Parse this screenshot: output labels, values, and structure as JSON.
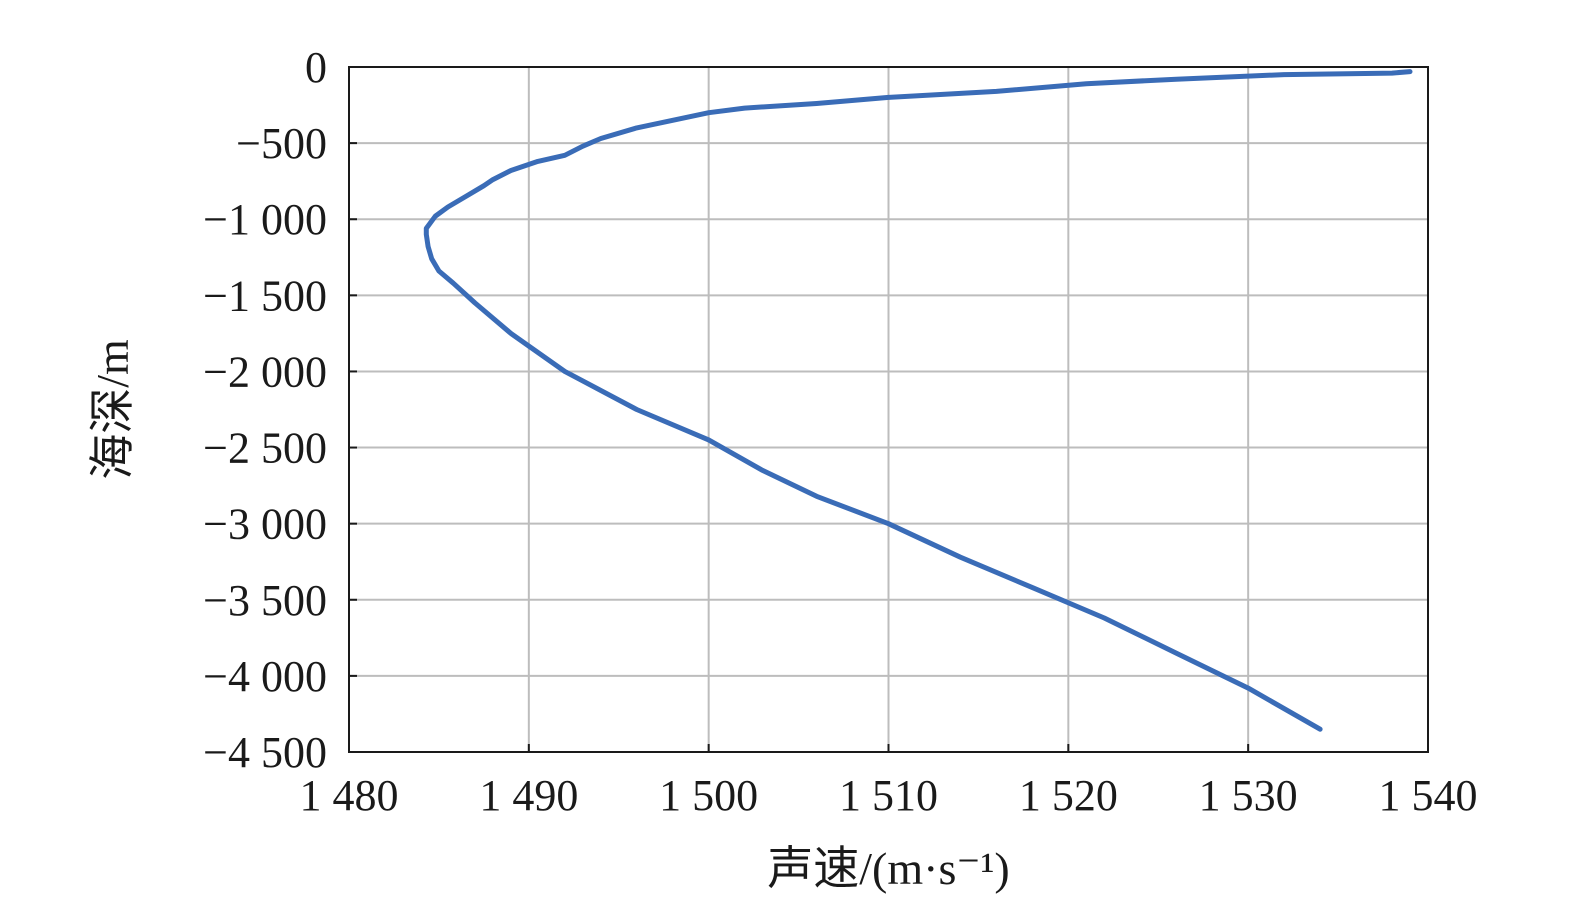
{
  "chart_data": {
    "type": "line",
    "title": "",
    "xlabel": "声速/(m·s⁻¹)",
    "ylabel": "海深/m",
    "xlim": [
      1480,
      1540
    ],
    "ylim": [
      -4500,
      0
    ],
    "xticks": [
      1480,
      1490,
      1500,
      1510,
      1520,
      1530,
      1540
    ],
    "xtick_labels": [
      "1 480",
      "1 490",
      "1 500",
      "1 510",
      "1 520",
      "1 530",
      "1 540"
    ],
    "yticks": [
      0,
      -500,
      -1000,
      -1500,
      -2000,
      -2500,
      -3000,
      -3500,
      -4000,
      -4500
    ],
    "ytick_labels": [
      "0",
      "−500",
      "−1 000",
      "−1 500",
      "−2 000",
      "−2 500",
      "−3 000",
      "−3 500",
      "−4 000",
      "−4 500"
    ],
    "grid": true,
    "legend": "none",
    "line_color": "#3a6cb7",
    "series": [
      {
        "x": [
          1539,
          1538,
          1532,
          1526,
          1521,
          1516,
          1510,
          1506,
          1502,
          1500,
          1498,
          1496,
          1494,
          1493,
          1492,
          1490.5,
          1489,
          1488,
          1487.5,
          1486.5,
          1485.5,
          1484.8,
          1484.3,
          1484.3,
          1484.4,
          1484.6,
          1485,
          1485.8,
          1487,
          1489,
          1492,
          1496,
          1500,
          1503,
          1506,
          1510,
          1514,
          1518,
          1522,
          1526,
          1530,
          1534
        ],
        "y": [
          -30,
          -40,
          -50,
          -80,
          -110,
          -160,
          -200,
          -240,
          -270,
          -300,
          -350,
          -400,
          -470,
          -520,
          -580,
          -620,
          -680,
          -740,
          -780,
          -850,
          -920,
          -980,
          -1060,
          -1100,
          -1180,
          -1260,
          -1340,
          -1420,
          -1550,
          -1750,
          -2000,
          -2250,
          -2450,
          -2650,
          -2820,
          -3000,
          -3220,
          -3420,
          -3620,
          -3850,
          -4080,
          -4350
        ]
      }
    ]
  }
}
